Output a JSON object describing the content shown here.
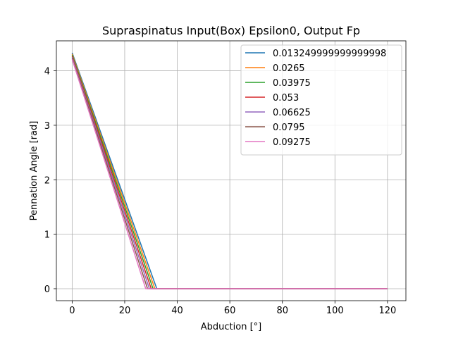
{
  "chart_data": {
    "type": "line",
    "title": "Supraspinatus Input(Box) Epsilon0, Output Fp",
    "xlabel": "Abduction [°]",
    "ylabel": "Pennation Angle [rad]",
    "xlim": [
      -6,
      127
    ],
    "ylim": [
      -0.22,
      4.55
    ],
    "xticks": [
      0,
      20,
      40,
      60,
      80,
      100,
      120
    ],
    "yticks": [
      0,
      1,
      2,
      3,
      4
    ],
    "grid": true,
    "legend_position": "top-right",
    "series": [
      {
        "name": "0.013249999999999998",
        "color": "#1f77b4",
        "points": [
          [
            0,
            4.33
          ],
          [
            32.2,
            0.0
          ],
          [
            120,
            0.0
          ]
        ]
      },
      {
        "name": "0.0265",
        "color": "#ff7f0e",
        "points": [
          [
            0,
            4.31
          ],
          [
            31.5,
            0.0
          ],
          [
            120,
            0.0
          ]
        ]
      },
      {
        "name": "0.03975",
        "color": "#2ca02c",
        "points": [
          [
            0,
            4.29
          ],
          [
            30.8,
            0.0
          ],
          [
            120,
            0.0
          ]
        ]
      },
      {
        "name": "0.053",
        "color": "#d62728",
        "points": [
          [
            0,
            4.27
          ],
          [
            30.1,
            0.0
          ],
          [
            120,
            0.0
          ]
        ]
      },
      {
        "name": "0.06625",
        "color": "#9467bd",
        "points": [
          [
            0,
            4.25
          ],
          [
            29.4,
            0.0
          ],
          [
            120,
            0.0
          ]
        ]
      },
      {
        "name": "0.0795",
        "color": "#8c564b",
        "points": [
          [
            0,
            4.23
          ],
          [
            28.7,
            0.0
          ],
          [
            120,
            0.0
          ]
        ]
      },
      {
        "name": "0.09275",
        "color": "#e377c2",
        "points": [
          [
            0,
            4.21
          ],
          [
            28.0,
            0.0
          ],
          [
            120,
            0.0
          ]
        ]
      }
    ]
  }
}
